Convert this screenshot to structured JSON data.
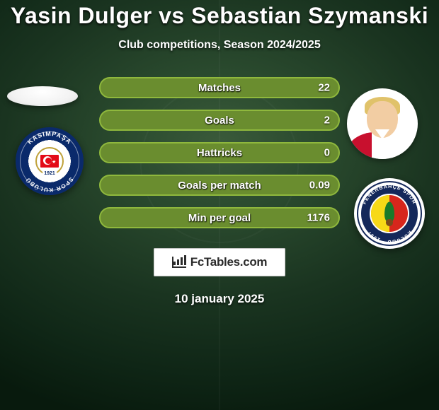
{
  "title": "Yasin Dulger vs Sebastian Szymanski",
  "title_fontsize": 32,
  "subtitle": "Club competitions, Season 2024/2025",
  "subtitle_fontsize": 16,
  "text_color": "#ffffff",
  "background": {
    "type": "radial-pitch",
    "center_color": "#3a5a3a",
    "edge_color": "#081a0d"
  },
  "stats": {
    "bar_color": "#6a8d2f",
    "bar_border": "#8fb83d",
    "label_fontsize": 15,
    "value_fontsize": 15,
    "rows": [
      {
        "label": "Matches",
        "right_value": "22"
      },
      {
        "label": "Goals",
        "right_value": "2"
      },
      {
        "label": "Hattricks",
        "right_value": "0"
      },
      {
        "label": "Goals per match",
        "right_value": "0.09"
      },
      {
        "label": "Min per goal",
        "right_value": "1176"
      }
    ]
  },
  "brand": {
    "text": "FcTables.com",
    "fontsize": 17,
    "box_bg": "#ffffff",
    "text_color": "#2b2b2b"
  },
  "date": "10 january 2025",
  "date_fontsize": 17,
  "left_player": {
    "name": "Yasin Dulger",
    "photo_bg": "#ffffff"
  },
  "right_player": {
    "name": "Sebastian Szymanski",
    "skin": "#f2cda3",
    "hair": "#e0c26a",
    "kit_primary": "#c8102e",
    "kit_secondary": "#ffffff"
  },
  "left_club": {
    "name": "Kasımpaşa",
    "ring_color": "#0a2a6b",
    "inner_bg": "#ffffff",
    "arc_top": "KASIMPAŞA",
    "arc_bottom": "SPOR KULÜBÜ",
    "flag_red": "#e30a17",
    "year": "1921"
  },
  "right_club": {
    "name": "Fenerbahçe",
    "ring_color": "#14285a",
    "core_yellow": "#f7d917",
    "core_red": "#d7261c",
    "leaf": "#1a7a2a",
    "arc_top": "FENERBAHÇE SPOR",
    "arc_bottom": "KULÜBÜ · 1907"
  }
}
